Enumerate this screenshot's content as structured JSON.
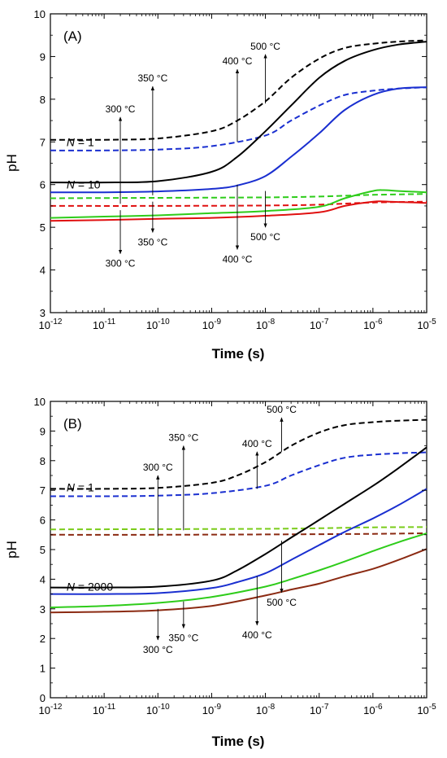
{
  "chart_data": [
    {
      "type": "line",
      "panel_label": "(A)",
      "xlabel": "Time (s)",
      "ylabel": "pH",
      "x_scale": "log",
      "xlim": [
        1e-12,
        1e-05
      ],
      "ylim": [
        3,
        10
      ],
      "x_ticks": [
        {
          "base": "10",
          "exp": "-12"
        },
        {
          "base": "10",
          "exp": "-11"
        },
        {
          "base": "10",
          "exp": "-10"
        },
        {
          "base": "10",
          "exp": "-9"
        },
        {
          "base": "10",
          "exp": "-8"
        },
        {
          "base": "10",
          "exp": "-7"
        },
        {
          "base": "10",
          "exp": "-6"
        },
        {
          "base": "10",
          "exp": "-5"
        }
      ],
      "y_ticks": [
        "3",
        "4",
        "5",
        "6",
        "7",
        "8",
        "9",
        "10"
      ],
      "grid": false,
      "group_labels": [
        {
          "n": "N",
          "rest": " = 1",
          "t": 2e-12,
          "y": 7.0
        },
        {
          "n": "N",
          "rest": " = 10",
          "t": 2e-12,
          "y": 6.0
        }
      ],
      "annotations": [
        {
          "text": "300 °C",
          "t": 2e-11,
          "from": 5.55,
          "to": 7.58,
          "dir": "up"
        },
        {
          "text": "350 °C",
          "t": 8e-11,
          "from": 5.75,
          "to": 8.3,
          "dir": "up"
        },
        {
          "text": "400 °C",
          "t": 3e-09,
          "from": 7.0,
          "to": 8.7,
          "dir": "up"
        },
        {
          "text": "500 °C",
          "t": 1e-08,
          "from": 7.9,
          "to": 9.05,
          "dir": "up"
        },
        {
          "text": "300 °C",
          "t": 2e-11,
          "from": 5.4,
          "to": 4.38,
          "dir": "down"
        },
        {
          "text": "350 °C",
          "t": 8e-11,
          "from": 5.6,
          "to": 4.88,
          "dir": "down"
        },
        {
          "text": "400 °C",
          "t": 3e-09,
          "from": 6.0,
          "to": 4.48,
          "dir": "down"
        },
        {
          "text": "500 °C",
          "t": 1e-08,
          "from": 5.85,
          "to": 5.0,
          "dir": "down"
        }
      ],
      "series": [
        {
          "temperature": "500 °C",
          "N": "1",
          "color": "#000000",
          "dash": true,
          "x": [
            1e-12,
            1e-11,
            1e-10,
            1e-09,
            3e-09,
            1e-08,
            3e-08,
            1e-07,
            3e-07,
            1e-06,
            3e-06,
            1e-05
          ],
          "values": [
            7.05,
            7.05,
            7.08,
            7.25,
            7.5,
            7.95,
            8.5,
            8.95,
            9.2,
            9.3,
            9.35,
            9.38
          ]
        },
        {
          "temperature": "400 °C",
          "N": "1",
          "color": "#1a2fd0",
          "dash": true,
          "x": [
            1e-12,
            1e-11,
            1e-10,
            1e-09,
            1e-08,
            3e-08,
            1e-07,
            3e-07,
            1e-06,
            3e-06,
            1e-05
          ],
          "values": [
            6.8,
            6.8,
            6.82,
            6.9,
            7.15,
            7.5,
            7.85,
            8.1,
            8.2,
            8.25,
            8.28
          ]
        },
        {
          "temperature": "350 °C",
          "N": "1",
          "color": "#2ecc1a",
          "dash": true,
          "x": [
            1e-12,
            1e-10,
            1e-08,
            1e-07,
            1e-06,
            1e-05
          ],
          "values": [
            5.68,
            5.69,
            5.7,
            5.72,
            5.76,
            5.78
          ]
        },
        {
          "temperature": "300 °C",
          "N": "1",
          "color": "#e01010",
          "dash": true,
          "x": [
            1e-12,
            1e-10,
            1e-08,
            1e-07,
            1e-06,
            1e-05
          ],
          "values": [
            5.5,
            5.5,
            5.51,
            5.53,
            5.58,
            5.6
          ]
        },
        {
          "temperature": "500 °C",
          "N": "10",
          "color": "#000000",
          "dash": false,
          "x": [
            1e-12,
            1e-11,
            1e-10,
            1e-09,
            3e-09,
            1e-08,
            3e-08,
            1e-07,
            3e-07,
            1e-06,
            3e-06,
            1e-05
          ],
          "values": [
            6.05,
            6.05,
            6.08,
            6.3,
            6.65,
            7.25,
            7.85,
            8.5,
            8.9,
            9.15,
            9.28,
            9.35
          ]
        },
        {
          "temperature": "400 °C",
          "N": "10",
          "color": "#1a2fd0",
          "dash": false,
          "x": [
            1e-12,
            1e-11,
            1e-10,
            1e-09,
            3e-09,
            1e-08,
            3e-08,
            1e-07,
            3e-07,
            1e-06,
            3e-06,
            1e-05
          ],
          "values": [
            5.82,
            5.82,
            5.84,
            5.9,
            5.98,
            6.2,
            6.65,
            7.2,
            7.75,
            8.1,
            8.25,
            8.28
          ]
        },
        {
          "temperature": "350 °C",
          "N": "10",
          "color": "#2ecc1a",
          "dash": false,
          "x": [
            1e-12,
            1e-11,
            1e-10,
            1e-09,
            1e-08,
            1e-07,
            3e-07,
            1e-06,
            1.6e-06,
            3e-06,
            1e-05
          ],
          "values": [
            5.22,
            5.25,
            5.28,
            5.33,
            5.38,
            5.48,
            5.68,
            5.85,
            5.87,
            5.85,
            5.82
          ]
        },
        {
          "temperature": "300 °C",
          "N": "10",
          "color": "#e01010",
          "dash": false,
          "x": [
            1e-12,
            1e-11,
            1e-10,
            1e-09,
            1e-08,
            1e-07,
            3e-07,
            1e-06,
            2e-06,
            1e-05
          ],
          "values": [
            5.15,
            5.17,
            5.2,
            5.22,
            5.27,
            5.35,
            5.5,
            5.6,
            5.6,
            5.57
          ]
        }
      ]
    },
    {
      "type": "line",
      "panel_label": "(B)",
      "xlabel": "Time (s)",
      "ylabel": "pH",
      "x_scale": "log",
      "xlim": [
        1e-12,
        1e-05
      ],
      "ylim": [
        0,
        10
      ],
      "x_ticks": [
        {
          "base": "10",
          "exp": "-12"
        },
        {
          "base": "10",
          "exp": "-11"
        },
        {
          "base": "10",
          "exp": "-10"
        },
        {
          "base": "10",
          "exp": "-9"
        },
        {
          "base": "10",
          "exp": "-8"
        },
        {
          "base": "10",
          "exp": "-7"
        },
        {
          "base": "10",
          "exp": "-6"
        },
        {
          "base": "10",
          "exp": "-5"
        }
      ],
      "y_ticks": [
        "0",
        "1",
        "2",
        "3",
        "4",
        "5",
        "6",
        "7",
        "8",
        "9",
        "10"
      ],
      "grid": false,
      "group_labels": [
        {
          "n": "N",
          "rest": " = 1",
          "t": 2e-12,
          "y": 7.1
        },
        {
          "n": "N",
          "rest": " = 2000",
          "t": 2e-12,
          "y": 3.75
        }
      ],
      "annotations": [
        {
          "text": "300 °C",
          "t": 1e-10,
          "from": 5.45,
          "to": 7.5,
          "dir": "up"
        },
        {
          "text": "350 °C",
          "t": 3e-10,
          "from": 5.65,
          "to": 8.5,
          "dir": "up"
        },
        {
          "text": "400 °C",
          "t": 7e-09,
          "from": 7.05,
          "to": 8.3,
          "dir": "up"
        },
        {
          "text": "500 °C",
          "t": 2e-08,
          "from": 8.3,
          "to": 9.45,
          "dir": "up"
        },
        {
          "text": "300 °C",
          "t": 1e-10,
          "from": 3.0,
          "to": 1.95,
          "dir": "down"
        },
        {
          "text": "350 °C",
          "t": 3e-10,
          "from": 3.25,
          "to": 2.35,
          "dir": "down"
        },
        {
          "text": "400 °C",
          "t": 7e-09,
          "from": 4.1,
          "to": 2.45,
          "dir": "down"
        },
        {
          "text": "500 °C",
          "t": 2e-08,
          "from": 5.3,
          "to": 3.55,
          "dir": "down"
        }
      ],
      "series": [
        {
          "temperature": "500 °C",
          "N": "1",
          "color": "#000000",
          "dash": true,
          "x": [
            1e-12,
            1e-11,
            1e-10,
            1e-09,
            3e-09,
            1e-08,
            3e-08,
            1e-07,
            3e-07,
            1e-06,
            3e-06,
            1e-05
          ],
          "values": [
            7.05,
            7.05,
            7.08,
            7.25,
            7.5,
            7.95,
            8.5,
            8.95,
            9.2,
            9.3,
            9.35,
            9.38
          ]
        },
        {
          "temperature": "400 °C",
          "N": "1",
          "color": "#1a2fd0",
          "dash": true,
          "x": [
            1e-12,
            1e-11,
            1e-10,
            1e-09,
            1e-08,
            3e-08,
            1e-07,
            3e-07,
            1e-06,
            3e-06,
            1e-05
          ],
          "values": [
            6.8,
            6.8,
            6.82,
            6.9,
            7.15,
            7.5,
            7.85,
            8.1,
            8.2,
            8.25,
            8.28
          ]
        },
        {
          "temperature": "350 °C",
          "N": "1",
          "color": "#7acc1a",
          "dash": true,
          "x": [
            1e-12,
            1e-10,
            1e-08,
            1e-07,
            1e-06,
            1e-05
          ],
          "values": [
            5.68,
            5.69,
            5.7,
            5.72,
            5.75,
            5.76
          ]
        },
        {
          "temperature": "300 °C",
          "N": "1",
          "color": "#8b2a12",
          "dash": true,
          "x": [
            1e-12,
            1e-10,
            1e-08,
            1e-07,
            1e-06,
            1e-05
          ],
          "values": [
            5.5,
            5.5,
            5.51,
            5.52,
            5.53,
            5.55
          ]
        },
        {
          "temperature": "500 °C",
          "N": "2000",
          "color": "#000000",
          "dash": false,
          "x": [
            1e-12,
            1e-11,
            1e-10,
            1e-09,
            3e-09,
            1e-08,
            3e-08,
            1e-07,
            3e-07,
            1e-06,
            3e-06,
            1e-05
          ],
          "values": [
            3.72,
            3.72,
            3.75,
            3.95,
            4.3,
            4.85,
            5.4,
            6.0,
            6.55,
            7.15,
            7.75,
            8.45
          ]
        },
        {
          "temperature": "400 °C",
          "N": "2000",
          "color": "#1a2fd0",
          "dash": false,
          "x": [
            1e-12,
            1e-11,
            1e-10,
            1e-09,
            3e-09,
            1e-08,
            3e-08,
            1e-07,
            3e-07,
            1e-06,
            3e-06,
            1e-05
          ],
          "values": [
            3.5,
            3.5,
            3.53,
            3.7,
            3.9,
            4.2,
            4.65,
            5.15,
            5.6,
            6.05,
            6.5,
            7.05
          ]
        },
        {
          "temperature": "350 °C",
          "N": "2000",
          "color": "#2ecc1a",
          "dash": false,
          "x": [
            1e-12,
            1e-11,
            1e-10,
            1e-09,
            1e-08,
            3e-08,
            1e-07,
            3e-07,
            1e-06,
            3e-06,
            1e-05
          ],
          "values": [
            3.05,
            3.1,
            3.2,
            3.4,
            3.75,
            4.0,
            4.3,
            4.6,
            4.95,
            5.25,
            5.55
          ]
        },
        {
          "temperature": "300 °C",
          "N": "2000",
          "color": "#8b2a12",
          "dash": false,
          "x": [
            1e-12,
            1e-11,
            1e-10,
            1e-09,
            1e-08,
            3e-08,
            1e-07,
            3e-07,
            1e-06,
            3e-06,
            1e-05
          ],
          "values": [
            2.88,
            2.9,
            2.95,
            3.1,
            3.45,
            3.65,
            3.85,
            4.1,
            4.35,
            4.65,
            5.02
          ]
        }
      ]
    }
  ]
}
